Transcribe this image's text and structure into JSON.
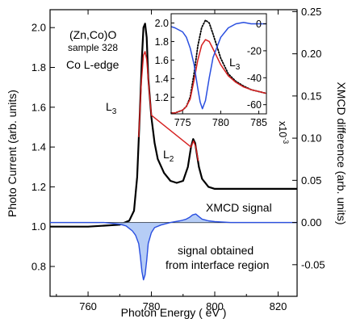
{
  "chart_data": [
    {
      "type": "line",
      "role": "main",
      "xlabel": "Photon Energy ( eV )",
      "ylabel": "Photo Current (arb. units)",
      "y2label": "XMCD difference (arb. units)",
      "xlim": [
        748,
        826
      ],
      "ylim": [
        0.65,
        2.09
      ],
      "y2lim": [
        -0.0875,
        0.2523
      ],
      "x_ticks": [
        760,
        780,
        800,
        820
      ],
      "y_ticks": [
        0.8,
        1.0,
        1.2,
        1.4,
        1.6,
        1.8,
        2.0
      ],
      "y2_ticks": [
        -0.05,
        0.0,
        0.05,
        0.1,
        0.15,
        0.2,
        0.25
      ],
      "y_tick_labels": [
        "0.8",
        "1.0",
        "1.2",
        "1.4",
        "1.6",
        "1.8",
        "2.0"
      ],
      "y2_tick_labels": [
        "-0.05",
        "0.00",
        "0.05",
        "0.10",
        "0.15",
        "0.20",
        "0.25"
      ],
      "grid": false,
      "series": [
        {
          "color": "#000000",
          "x": [
            748,
            760,
            770,
            773,
            774.5,
            775.5,
            776.3,
            777,
            777.5,
            778,
            778.5,
            779,
            780,
            781,
            782,
            784,
            786,
            788,
            790,
            791.5,
            792.5,
            793.2,
            793.8,
            795,
            796,
            798,
            800,
            805,
            810,
            815,
            820,
            826
          ],
          "y": [
            1.0,
            1.0,
            1.01,
            1.03,
            1.08,
            1.25,
            1.55,
            1.85,
            2.0,
            2.02,
            1.95,
            1.75,
            1.55,
            1.42,
            1.34,
            1.27,
            1.23,
            1.22,
            1.23,
            1.3,
            1.4,
            1.44,
            1.42,
            1.3,
            1.24,
            1.2,
            1.19,
            1.19,
            1.19,
            1.19,
            1.19,
            1.19
          ]
        },
        {
          "color": "#d62020",
          "x": [
            776,
            776.8,
            777.5,
            778,
            778.5,
            779.2,
            780,
            792.5,
            793.3,
            794,
            794.8
          ],
          "y": [
            1.45,
            1.72,
            1.86,
            1.88,
            1.84,
            1.7,
            1.56,
            1.4,
            1.43,
            1.4,
            1.33
          ]
        },
        {
          "color": "#2a4fe0",
          "axis": "y2",
          "fill": "#a9c4f5",
          "x": [
            748,
            765,
            770,
            772,
            773,
            774,
            775,
            776,
            776.5,
            777,
            777.5,
            778,
            778.5,
            779,
            780,
            781,
            783,
            786,
            789,
            790,
            791,
            792,
            793,
            794,
            795,
            796,
            798,
            800,
            805,
            810,
            815,
            820,
            826
          ],
          "y": [
            0.0,
            0.0,
            -0.002,
            -0.004,
            -0.007,
            -0.01,
            -0.015,
            -0.025,
            -0.04,
            -0.058,
            -0.068,
            -0.062,
            -0.045,
            -0.025,
            -0.012,
            -0.006,
            -0.003,
            0.0,
            0.002,
            0.003,
            0.004,
            0.006,
            0.009,
            0.01,
            0.007,
            0.004,
            0.002,
            0.001,
            0.0,
            0.0,
            0.0,
            0.0,
            0.0
          ]
        }
      ],
      "annotations": {
        "sample_line1": "(Zn,Co)O",
        "sample_line2": "sample 328",
        "edge": "Co L-edge",
        "l3_main": "L",
        "l3_sub": "3",
        "l2_main": "L",
        "l2_sub": "2",
        "xmcd": "XMCD signal",
        "interface_line1": "signal obtained",
        "interface_line2": "from interface region"
      }
    },
    {
      "type": "line",
      "role": "inset",
      "xlim": [
        773.5,
        786
      ],
      "ylim": [
        1.02,
        2.1
      ],
      "y2lim": [
        -66.8,
        7.5
      ],
      "x_ticks": [
        775,
        780,
        785
      ],
      "y_ticks": [
        1.2,
        1.4,
        1.6,
        1.8,
        2.0
      ],
      "y2_ticks": [
        -60,
        -40,
        -20,
        0
      ],
      "x_tick_labels": [
        "775",
        "780",
        "785"
      ],
      "y_tick_labels": [
        "1.2",
        "1.4",
        "1.6",
        "1.8",
        "2.0"
      ],
      "y2_tick_labels": [
        "-60",
        "-40",
        "-20",
        "0"
      ],
      "y2_scale_main": "x10",
      "y2_scale_exp": "-3",
      "label_main": "L",
      "label_sub": "3",
      "series": [
        {
          "color": "#000000",
          "style": "dotted",
          "x": [
            773.5,
            774,
            775,
            775.5,
            776,
            776.5,
            777,
            777.5,
            778,
            778.5,
            779,
            780,
            781,
            782,
            783,
            784,
            785,
            786
          ],
          "y": [
            1.03,
            1.03,
            1.06,
            1.1,
            1.2,
            1.45,
            1.75,
            1.95,
            2.03,
            2.0,
            1.88,
            1.62,
            1.45,
            1.37,
            1.32,
            1.28,
            1.26,
            1.24
          ]
        },
        {
          "color": "#d62020",
          "x": [
            773.5,
            774,
            775,
            775.5,
            776,
            776.5,
            777,
            777.5,
            778,
            778.5,
            779,
            780,
            781,
            782,
            783,
            784,
            785,
            786
          ],
          "y": [
            1.03,
            1.03,
            1.06,
            1.1,
            1.18,
            1.38,
            1.6,
            1.76,
            1.82,
            1.8,
            1.72,
            1.55,
            1.43,
            1.36,
            1.31,
            1.28,
            1.26,
            1.24
          ]
        },
        {
          "color": "#2a4fe0",
          "axis": "y2",
          "x": [
            773.5,
            774,
            775,
            775.5,
            776,
            776.5,
            777,
            777.3,
            777.6,
            778,
            778.5,
            779,
            780,
            781,
            782,
            783,
            784,
            785,
            786
          ],
          "y": [
            -2,
            -3,
            -6,
            -10,
            -18,
            -30,
            -48,
            -58,
            -63,
            -57,
            -40,
            -25,
            -10,
            -3,
            0,
            1,
            0,
            0,
            0
          ]
        }
      ]
    }
  ]
}
